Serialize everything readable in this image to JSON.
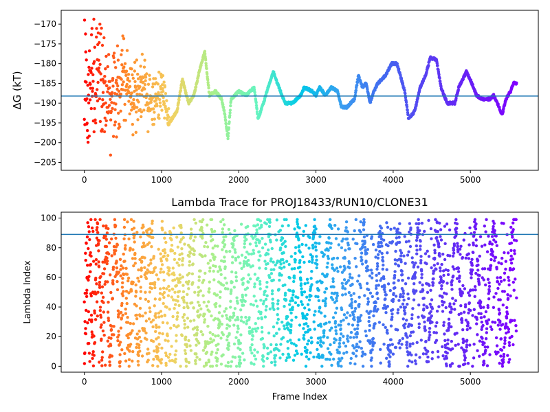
{
  "chart_data": [
    {
      "type": "scatter",
      "title": "",
      "xlabel": "",
      "ylabel": "ΔG (kT)",
      "xlim": [
        -300,
        5880
      ],
      "ylim": [
        -207,
        -166.5
      ],
      "x_ticks": [
        0,
        1000,
        2000,
        3000,
        4000,
        5000
      ],
      "x_tick_labels": [
        "0",
        "1000",
        "2000",
        "3000",
        "4000",
        "5000"
      ],
      "y_ticks": [
        -205,
        -200,
        -195,
        -190,
        -185,
        -180,
        -175,
        -170
      ],
      "y_tick_labels": [
        "−205",
        "−200",
        "−195",
        "−190",
        "−185",
        "−180",
        "−175",
        "−170"
      ],
      "hline": -188.2,
      "hline_color": "#1f77b4",
      "colormap": "rainbow (frame index mapped from red at 0 to violet at 5600)",
      "colormap_stops": [
        "#ff0000",
        "#ff8c2a",
        "#f4d060",
        "#a8f08c",
        "#66f4c0",
        "#00c8e8",
        "#3a9cf0",
        "#4466f0",
        "#5a3cf2",
        "#6a1cf6",
        "#8000ff"
      ],
      "x_max_frame": 5600,
      "n_points": 5600,
      "series": [
        {
          "name": "",
          "trend_points": [
            [
              0,
              -185
            ],
            [
              150,
              -183
            ],
            [
              200,
              -184
            ],
            [
              350,
              -191
            ],
            [
              500,
              -183
            ],
            [
              650,
              -189
            ],
            [
              780,
              -183
            ],
            [
              820,
              -190
            ],
            [
              950,
              -189
            ],
            [
              1000,
              -187
            ],
            [
              1100,
              -195
            ],
            [
              1200,
              -192
            ],
            [
              1270,
              -184
            ],
            [
              1350,
              -190
            ],
            [
              1420,
              -188
            ],
            [
              1500,
              -181
            ],
            [
              1560,
              -177
            ],
            [
              1620,
              -188
            ],
            [
              1700,
              -187
            ],
            [
              1780,
              -189
            ],
            [
              1820,
              -193
            ],
            [
              1860,
              -199
            ],
            [
              1900,
              -189
            ],
            [
              2000,
              -187
            ],
            [
              2100,
              -188
            ],
            [
              2200,
              -186
            ],
            [
              2250,
              -194
            ],
            [
              2320,
              -190
            ],
            [
              2380,
              -186
            ],
            [
              2450,
              -182
            ],
            [
              2500,
              -185
            ],
            [
              2600,
              -190
            ],
            [
              2700,
              -190
            ],
            [
              2800,
              -188
            ],
            [
              2850,
              -186
            ],
            [
              2950,
              -187
            ],
            [
              3000,
              -188
            ],
            [
              3050,
              -186
            ],
            [
              3120,
              -188
            ],
            [
              3200,
              -186
            ],
            [
              3280,
              -187
            ],
            [
              3330,
              -191
            ],
            [
              3400,
              -191
            ],
            [
              3500,
              -189
            ],
            [
              3550,
              -183
            ],
            [
              3600,
              -186
            ],
            [
              3650,
              -185
            ],
            [
              3700,
              -190
            ],
            [
              3750,
              -187
            ],
            [
              3800,
              -185
            ],
            [
              3900,
              -183
            ],
            [
              3980,
              -180
            ],
            [
              4050,
              -180
            ],
            [
              4150,
              -187
            ],
            [
              4200,
              -194
            ],
            [
              4280,
              -192
            ],
            [
              4350,
              -186
            ],
            [
              4420,
              -183
            ],
            [
              4480,
              -178.5
            ],
            [
              4560,
              -179
            ],
            [
              4620,
              -186
            ],
            [
              4700,
              -190
            ],
            [
              4800,
              -190
            ],
            [
              4850,
              -186
            ],
            [
              4950,
              -182
            ],
            [
              5020,
              -185
            ],
            [
              5080,
              -188
            ],
            [
              5150,
              -189
            ],
            [
              5250,
              -189
            ],
            [
              5300,
              -188
            ],
            [
              5350,
              -190
            ],
            [
              5410,
              -193
            ],
            [
              5460,
              -189
            ],
            [
              5520,
              -187
            ],
            [
              5560,
              -185
            ]
          ]
        }
      ]
    },
    {
      "type": "scatter",
      "title": "Lambda Trace for PROJ18433/RUN10/CLONE31",
      "xlabel": "Frame Index",
      "ylabel": "Lambda Index",
      "xlim": [
        -300,
        5880
      ],
      "ylim": [
        -4,
        104
      ],
      "x_ticks": [
        0,
        1000,
        2000,
        3000,
        4000,
        5000
      ],
      "x_tick_labels": [
        "0",
        "1000",
        "2000",
        "3000",
        "4000",
        "5000"
      ],
      "y_ticks": [
        0,
        20,
        40,
        60,
        80,
        100
      ],
      "y_tick_labels": [
        "0",
        "20",
        "40",
        "60",
        "80",
        "100"
      ],
      "hline": 89,
      "hline_color": "#1f77b4",
      "colormap": "rainbow (frame index mapped from red at 0 to violet at 5600)",
      "x_max_frame": 5600,
      "n_points": 5600,
      "series": [
        {
          "name": "",
          "value_range": [
            0,
            99
          ],
          "sweep_edges": [
            0,
            60,
            110,
            170,
            230,
            280,
            330,
            400,
            460,
            520,
            580,
            640,
            700,
            760,
            820,
            880,
            950,
            1010,
            1060,
            1120,
            1180,
            1250,
            1320,
            1380,
            1440,
            1520,
            1580,
            1650,
            1720,
            1800,
            1860,
            1940,
            2010,
            2090,
            2160,
            2240,
            2320,
            2400,
            2470,
            2560,
            2650,
            2760,
            2870,
            2980,
            3080,
            3180,
            3290,
            3400,
            3510,
            3620,
            3720,
            3830,
            3950,
            4060,
            4200,
            4330,
            4440,
            4570,
            4690,
            4810,
            4930,
            5060,
            5180,
            5300,
            5420,
            5560
          ]
        }
      ]
    }
  ]
}
